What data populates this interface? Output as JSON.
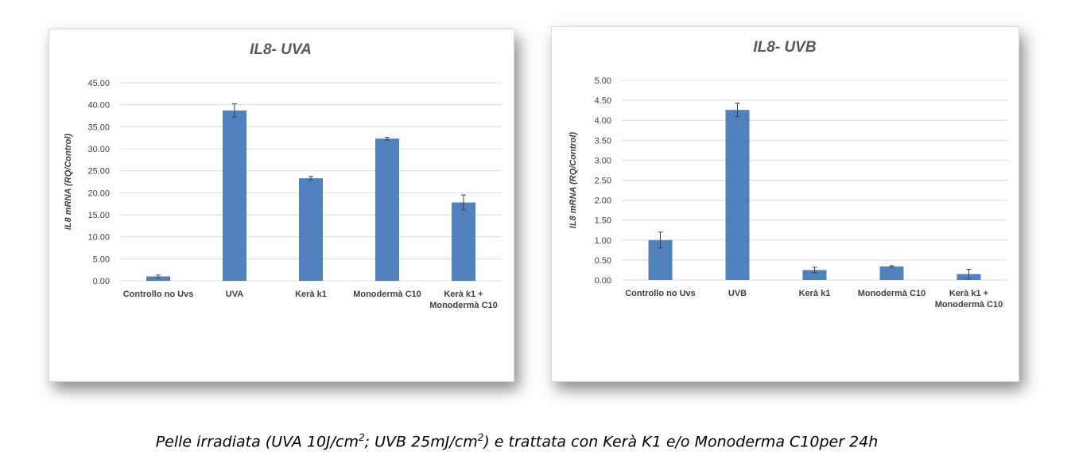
{
  "chart_data": [
    {
      "type": "bar",
      "title": "IL8- UVA",
      "ylabel": "IL8 mRNA (RQ/Control)",
      "ylim": [
        0,
        45
      ],
      "ytick_step": 5,
      "grid": true,
      "categories": [
        [
          "Controllo no Uvs"
        ],
        [
          "UVA"
        ],
        [
          "Kerà k1"
        ],
        [
          "Monodermà C10"
        ],
        [
          "Kerà k1 +",
          "Monodermà C10"
        ]
      ],
      "values": [
        1.0,
        38.7,
        23.3,
        32.3,
        17.8
      ],
      "errors": [
        0.3,
        1.5,
        0.4,
        0.3,
        1.7
      ],
      "color": "#4f81bd"
    },
    {
      "type": "bar",
      "title": "IL8- UVB",
      "ylabel": "IL8 mRNA (RQ/Control)",
      "ylim": [
        0,
        5
      ],
      "ytick_step": 0.5,
      "grid": true,
      "categories": [
        [
          "Controllo no Uvs"
        ],
        [
          "UVB"
        ],
        [
          "Kerà k1"
        ],
        [
          "Monodermà C10"
        ],
        [
          "Kerà k1 +",
          "Monodermà C10"
        ]
      ],
      "values": [
        1.0,
        4.26,
        0.25,
        0.34,
        0.15
      ],
      "errors": [
        0.2,
        0.17,
        0.07,
        0.02,
        0.12
      ],
      "color": "#4f81bd"
    }
  ],
  "caption": {
    "part1": "Pelle irradiata (UVA 10J/cm",
    "sup1": "2",
    "part2": "; UVB 25mJ/cm",
    "sup2": "2",
    "part3": ") e trattata con Kerà K1 e/o Monoderma C10per 24h"
  }
}
